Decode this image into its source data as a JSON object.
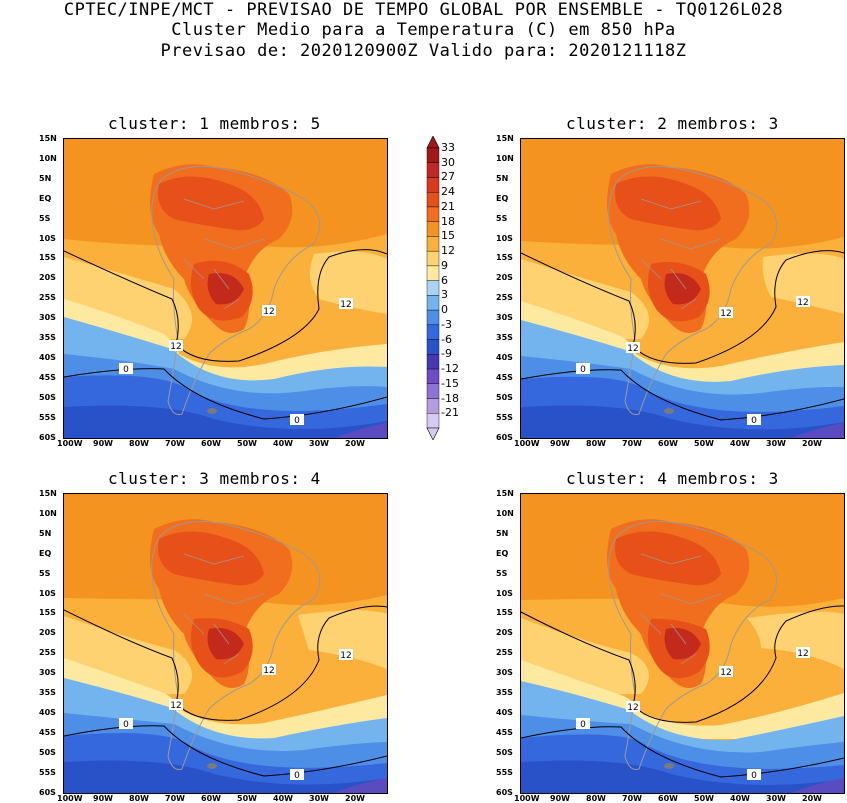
{
  "header": {
    "line1": "CPTEC/INPE/MCT - PREVISAO DE TEMPO GLOBAL POR ENSEMBLE - TQ0126L028",
    "line2": "Cluster Medio para a Temperatura (C) em 850 hPa",
    "line3": "Previsao de: 2020120900Z   Valido para: 2020121118Z"
  },
  "panels": [
    {
      "title": "cluster: 1  membros: 5"
    },
    {
      "title": "cluster: 2  membros: 3"
    },
    {
      "title": "cluster: 3  membros: 4"
    },
    {
      "title": "cluster: 4  membros: 3"
    }
  ],
  "lat_labels": [
    "15N",
    "10N",
    "5N",
    "EQ",
    "5S",
    "10S",
    "15S",
    "20S",
    "25S",
    "30S",
    "35S",
    "40S",
    "45S",
    "50S",
    "55S",
    "60S"
  ],
  "lon_labels": [
    "100W",
    "90W",
    "80W",
    "70W",
    "60W",
    "50W",
    "40W",
    "30W",
    "20W"
  ],
  "legend": {
    "values": [
      "33",
      "30",
      "27",
      "24",
      "21",
      "18",
      "15",
      "12",
      "9",
      "6",
      "3",
      "0",
      "-3",
      "-6",
      "-9",
      "-12",
      "-15",
      "-18",
      "-21"
    ],
    "colors": [
      "#a01818",
      "#c02828",
      "#d83a1e",
      "#e8501a",
      "#f06e1e",
      "#f59320",
      "#fbb03b",
      "#fed271",
      "#fdeaa0",
      "#a9d3f2",
      "#74b4ee",
      "#4d8ee7",
      "#3568dc",
      "#2a52c8",
      "#4538b0",
      "#6f4cc6",
      "#8f72d6",
      "#b39ce4",
      "#d6c9f2"
    ]
  },
  "contour_labels": {
    "twelve": "12",
    "zero": "0"
  },
  "colors": {
    "land_border": "#9a9a9a",
    "contour": "#000000"
  }
}
